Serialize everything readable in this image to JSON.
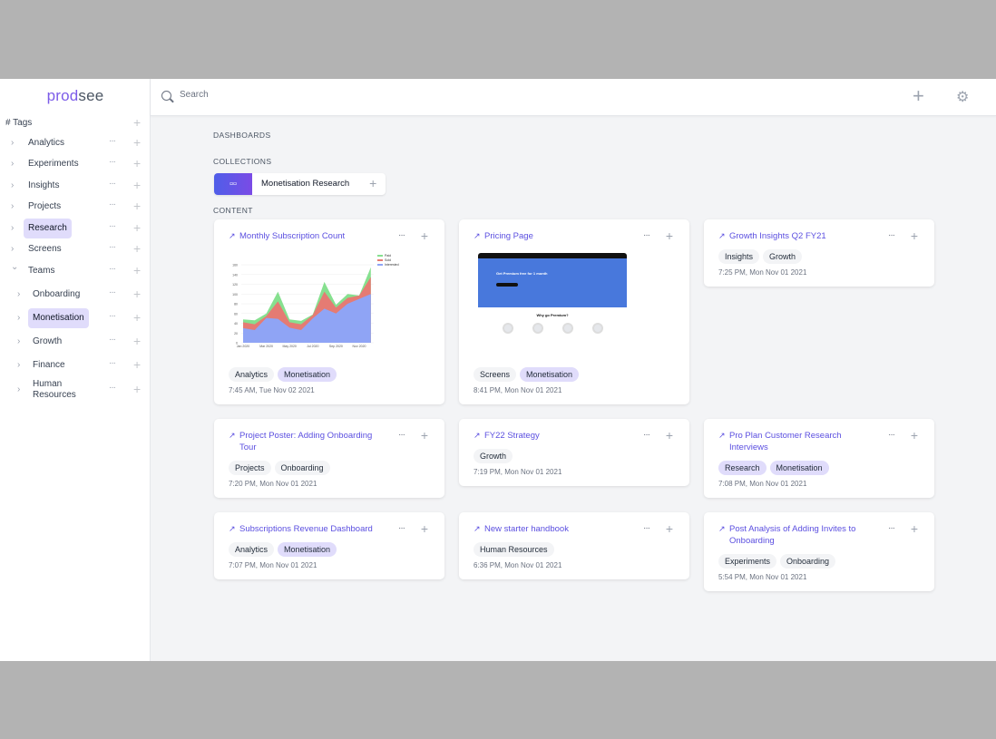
{
  "app": {
    "logo_part1": "prod",
    "logo_part2": "see"
  },
  "sidebar": {
    "tags_header": "# Tags",
    "items": [
      {
        "label": "Analytics",
        "level": 0,
        "expanded": false,
        "selected": false
      },
      {
        "label": "Experiments",
        "level": 0,
        "expanded": false,
        "selected": false
      },
      {
        "label": "Insights",
        "level": 0,
        "expanded": false,
        "selected": false
      },
      {
        "label": "Projects",
        "level": 0,
        "expanded": false,
        "selected": false
      },
      {
        "label": "Research",
        "level": 0,
        "expanded": false,
        "selected": true
      },
      {
        "label": "Screens",
        "level": 0,
        "expanded": false,
        "selected": false
      },
      {
        "label": "Teams",
        "level": 0,
        "expanded": true,
        "selected": false
      },
      {
        "label": "Onboarding",
        "level": 1,
        "expanded": false,
        "selected": false
      },
      {
        "label": "Monetisation",
        "level": 1,
        "expanded": false,
        "selected": true
      },
      {
        "label": "Growth",
        "level": 1,
        "expanded": false,
        "selected": false
      },
      {
        "label": "Finance",
        "level": 1,
        "expanded": false,
        "selected": false
      },
      {
        "label": "Human Resources",
        "level": 1,
        "expanded": false,
        "selected": false
      }
    ]
  },
  "header": {
    "search_placeholder": "Search",
    "search_value": ""
  },
  "main": {
    "dashboards_label": "DASHBOARDS",
    "collections_label": "COLLECTIONS",
    "collection": {
      "name": "Monetisation Research"
    },
    "content_label": "CONTENT",
    "cards": [
      {
        "title": "Monthly Subscription Count",
        "thumb": "chart",
        "tags": [
          "Analytics",
          "Monetisation"
        ],
        "time": "7:45 AM, Tue Nov 02 2021"
      },
      {
        "title": "Pricing Page",
        "thumb": "page",
        "tags": [
          "Screens",
          "Monetisation"
        ],
        "time": "8:41 PM, Mon Nov 01 2021"
      },
      {
        "title": "Growth Insights Q2 FY21",
        "tags": [
          "Insights",
          "Growth"
        ],
        "time": "7:25 PM, Mon Nov 01 2021"
      },
      {
        "title": "Project Poster: Adding Onboarding Tour",
        "tags": [
          "Projects",
          "Onboarding"
        ],
        "time": "7:20 PM, Mon Nov 01 2021"
      },
      {
        "title": "FY22 Strategy",
        "tags": [
          "Growth"
        ],
        "time": "7:19 PM, Mon Nov 01 2021"
      },
      {
        "title": "Pro Plan Customer Research Interviews",
        "tags": [
          "Research",
          "Monetisation"
        ],
        "time": "7:08 PM, Mon Nov 01 2021"
      },
      {
        "title": "Subscriptions Revenue Dashboard",
        "tags": [
          "Analytics",
          "Monetisation"
        ],
        "time": "7:07 PM, Mon Nov 01 2021"
      },
      {
        "title": "New starter handbook",
        "tags": [
          "Human Resources"
        ],
        "time": "6:36 PM, Mon Nov 01 2021"
      },
      {
        "title": "Post Analysis of Adding Invites to Onboarding",
        "tags": [
          "Experiments",
          "Onboarding"
        ],
        "time": "5:54 PM, Mon Nov 01 2021"
      }
    ],
    "purple_tags": [
      "Monetisation",
      "Research"
    ],
    "chart_thumb": {
      "legend": [
        "Paid",
        "Sold",
        "Interested"
      ],
      "x_ticks": [
        "Jan 2020",
        "Mar 2020",
        "May 2020",
        "Jul 2020",
        "Sep 2020",
        "Nov 2020"
      ],
      "y_ticks": [
        "0",
        "20",
        "40",
        "60",
        "80",
        "100",
        "120",
        "140",
        "160"
      ],
      "colors": [
        "#86e08f",
        "#e57b73",
        "#8fa4f5"
      ]
    },
    "page_thumb": {
      "hero": "Get Premium free for 1 month",
      "section": "Why go Premium?",
      "hero_color": "#4878dc"
    }
  },
  "colors": {
    "accent": "#5b4fe0",
    "selected_bg": "#e0dcfb"
  }
}
